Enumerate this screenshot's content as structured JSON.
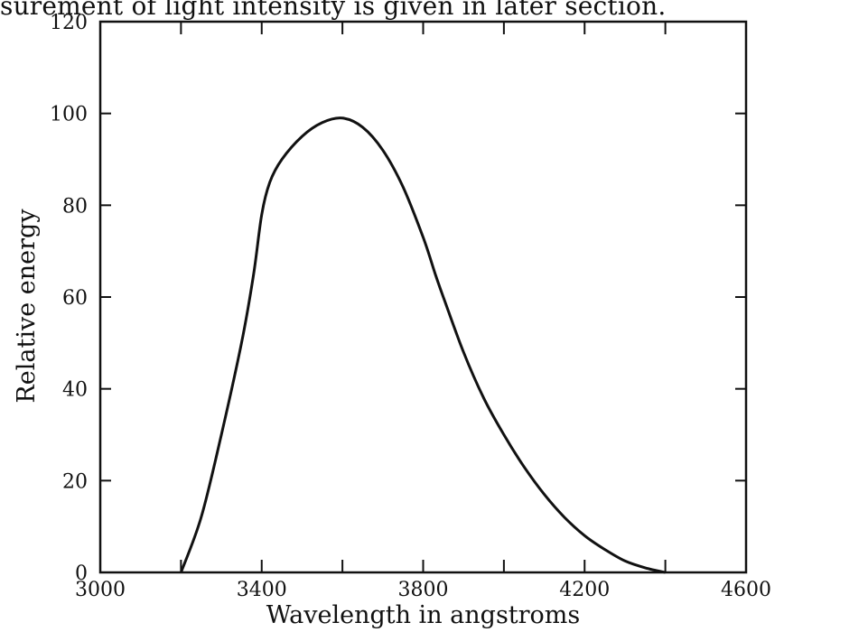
{
  "caption_text": "surement of light intensity is given in later section.",
  "chart_data": {
    "type": "line",
    "title": "",
    "xlabel": "Wavelength in angstroms",
    "ylabel": "Relative energy",
    "xlim": [
      3000,
      4600
    ],
    "ylim": [
      0,
      120
    ],
    "x_ticks": [
      3000,
      3400,
      3800,
      4200,
      4600
    ],
    "y_ticks": [
      0,
      20,
      40,
      60,
      80,
      100,
      120
    ],
    "grid": false,
    "series": [
      {
        "x": [
          3200,
          3250,
          3300,
          3350,
          3380,
          3400,
          3420,
          3450,
          3500,
          3550,
          3600,
          3650,
          3700,
          3750,
          3800,
          3830,
          3850,
          3900,
          3950,
          4000,
          4050,
          4100,
          4150,
          4200,
          4250,
          4300,
          4350,
          4400
        ],
        "y": [
          0,
          12,
          30,
          50,
          65,
          78,
          85,
          90,
          95,
          98,
          99,
          97,
          92,
          84,
          73,
          65,
          60,
          48,
          38,
          30,
          23,
          17,
          12,
          8,
          5,
          2.5,
          1,
          0
        ]
      }
    ]
  }
}
